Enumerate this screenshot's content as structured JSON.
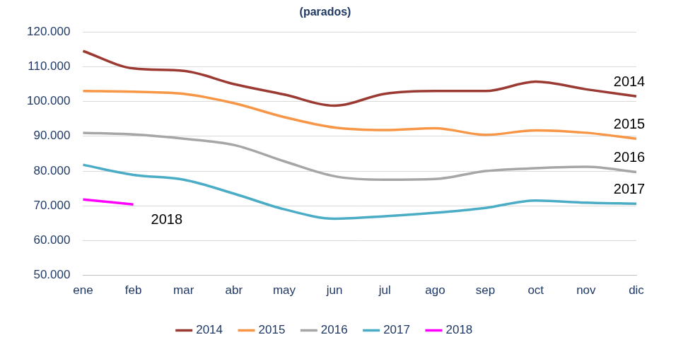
{
  "chart_data": {
    "type": "line",
    "title": "(parados)",
    "categories": [
      "ene",
      "feb",
      "mar",
      "abr",
      "may",
      "jun",
      "jul",
      "ago",
      "sep",
      "oct",
      "nov",
      "dic"
    ],
    "series": [
      {
        "name": "2014",
        "color": "#9b3a32",
        "values": [
          114500,
          109500,
          108800,
          105000,
          102000,
          98800,
          102200,
          103000,
          103000,
          105700,
          103500,
          101500
        ]
      },
      {
        "name": "2015",
        "color": "#f79646",
        "values": [
          103000,
          102800,
          102200,
          99500,
          95500,
          92500,
          91800,
          92300,
          90400,
          91700,
          91000,
          89300
        ]
      },
      {
        "name": "2016",
        "color": "#a6a6a6",
        "values": [
          91000,
          90500,
          89300,
          87500,
          82800,
          78500,
          77500,
          77700,
          80000,
          80800,
          81200,
          79700
        ]
      },
      {
        "name": "2017",
        "color": "#4bacc6",
        "values": [
          81800,
          78900,
          77500,
          73500,
          69000,
          66300,
          67000,
          68000,
          69400,
          71500,
          70900,
          70600
        ]
      },
      {
        "name": "2018",
        "color": "#ff00ff",
        "values": [
          71800,
          70400,
          null,
          null,
          null,
          null,
          null,
          null,
          null,
          null,
          null,
          null
        ]
      }
    ],
    "ylim": [
      50000,
      120000
    ],
    "yticks": [
      {
        "value": 50000,
        "label": "50.000"
      },
      {
        "value": 60000,
        "label": "60.000"
      },
      {
        "value": 70000,
        "label": "70.000"
      },
      {
        "value": 80000,
        "label": "80.000"
      },
      {
        "value": 90000,
        "label": "90.000"
      },
      {
        "value": 100000,
        "label": "100.000"
      },
      {
        "value": 110000,
        "label": "110.000"
      },
      {
        "value": 120000,
        "label": "120.000"
      }
    ],
    "grid": true,
    "legend": "bottom",
    "marker": "none",
    "line_style": "solid"
  }
}
